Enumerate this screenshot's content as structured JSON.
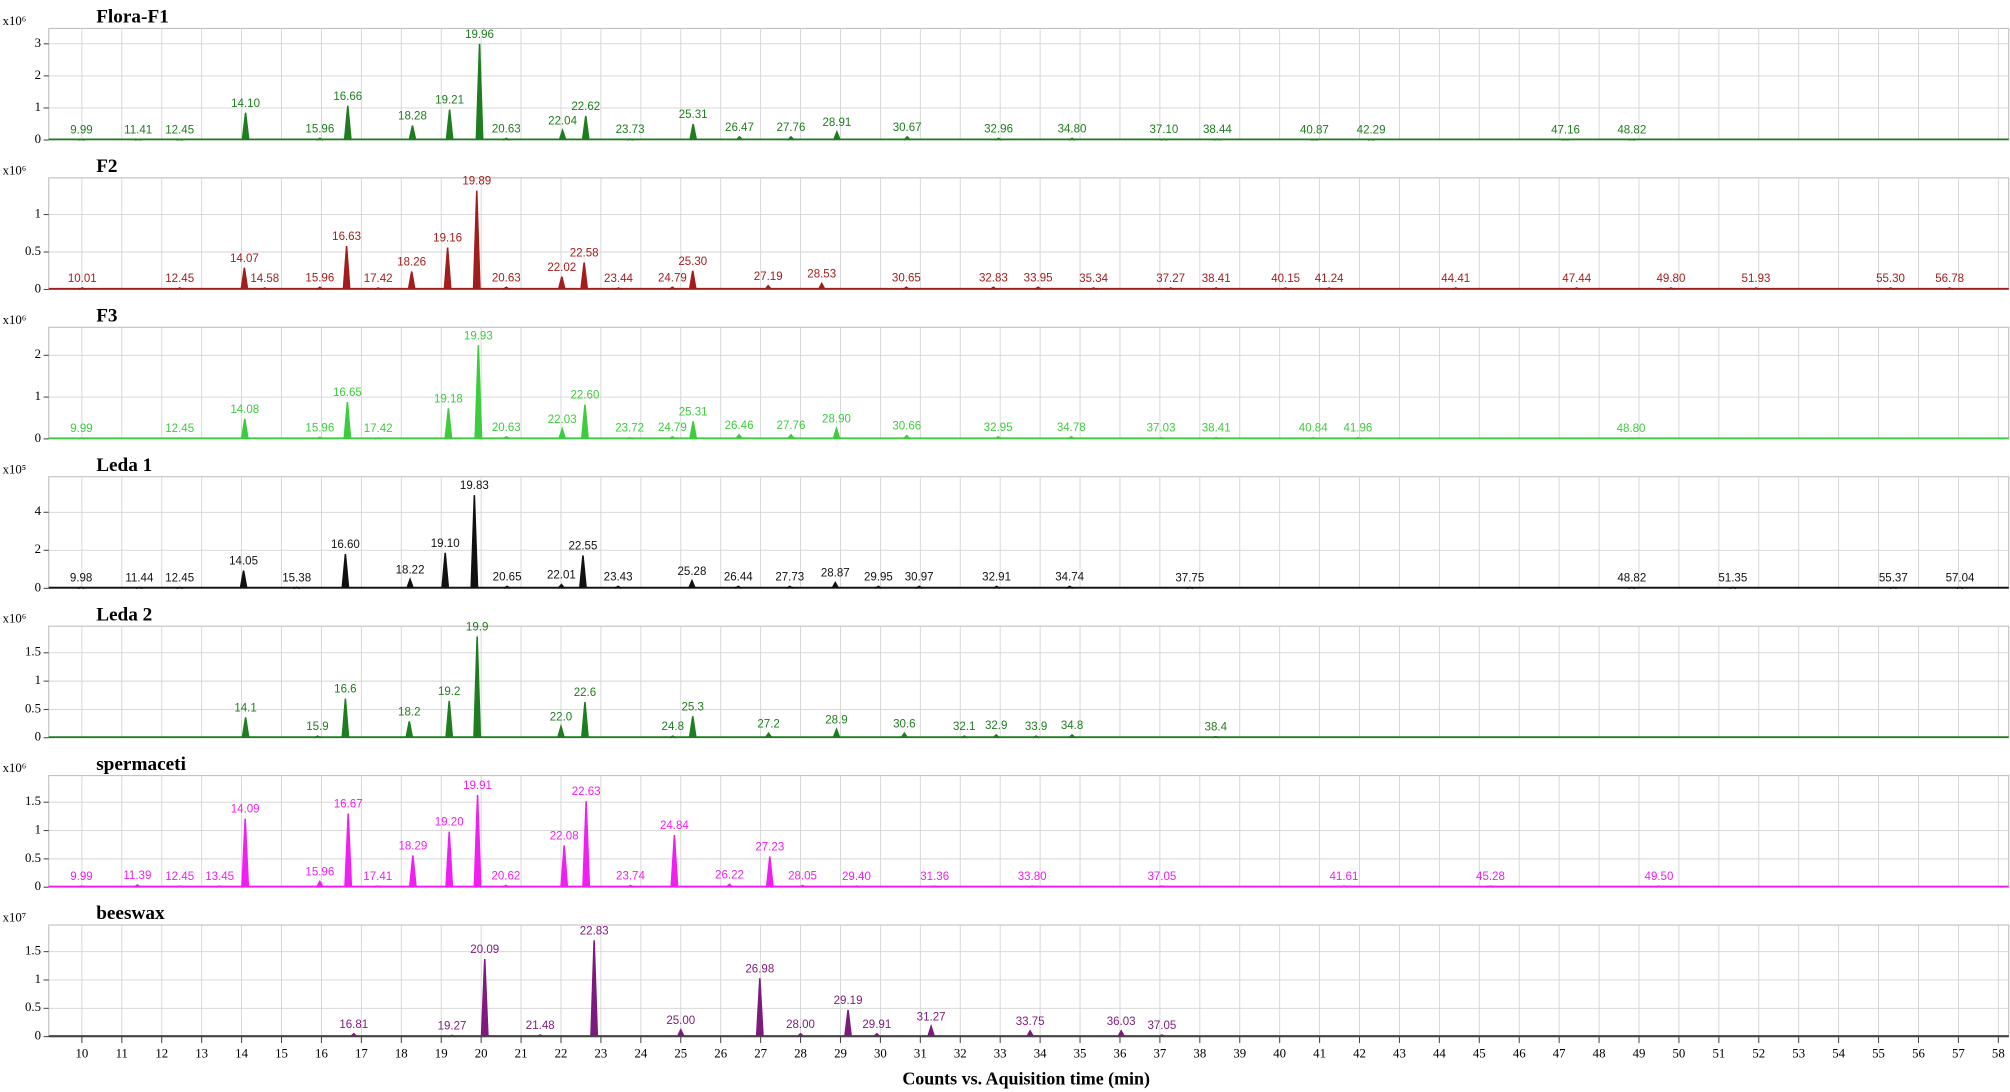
{
  "chart_data": {
    "type": "line",
    "xlabel": "Counts vs. Aquisition time (min)",
    "xlim": [
      9.17,
      58.26
    ],
    "xticks": [
      10,
      11,
      12,
      13,
      14,
      15,
      16,
      17,
      18,
      19,
      20,
      21,
      22,
      23,
      24,
      25,
      26,
      27,
      28,
      29,
      30,
      31,
      32,
      33,
      34,
      35,
      36,
      37,
      38,
      39,
      40,
      41,
      42,
      43,
      44,
      45,
      46,
      47,
      48,
      49,
      50,
      51,
      52,
      53,
      54,
      55,
      56,
      57,
      58
    ],
    "grid": true,
    "panels": [
      {
        "name": "Flora-F1",
        "scale": "x10⁶",
        "color": "#1e7d1e",
        "ylim": [
          0,
          3.48
        ],
        "yticks": [
          0,
          1,
          2,
          3
        ],
        "x": [
          9.99,
          11.41,
          12.45,
          14.1,
          15.96,
          16.66,
          18.28,
          19.21,
          19.96,
          20.63,
          22.04,
          22.62,
          23.73,
          25.31,
          26.47,
          27.76,
          28.91,
          30.67,
          32.96,
          34.8,
          37.1,
          38.44,
          40.87,
          42.29,
          47.16,
          48.82
        ],
        "labels": [
          "9.99",
          "11.41",
          "12.45",
          "14.10",
          "15.96",
          "16.66",
          "18.28",
          "19.21",
          "19.96",
          "20.63",
          "22.04",
          "22.62",
          "23.73",
          "25.31",
          "26.47",
          "27.76",
          "28.91",
          "30.67",
          "32.96",
          "34.80",
          "37.10",
          "38.44",
          "40.87",
          "42.29",
          "47.16",
          "48.82"
        ],
        "values": [
          0.02,
          0.02,
          0.02,
          0.85,
          0.05,
          1.07,
          0.45,
          0.95,
          3.0,
          0.05,
          0.3,
          0.75,
          0.03,
          0.5,
          0.1,
          0.1,
          0.25,
          0.1,
          0.05,
          0.05,
          0.03,
          0.03,
          0.02,
          0.02,
          0.02,
          0.02
        ]
      },
      {
        "name": "F2",
        "scale": "x10⁶",
        "color": "#a31d1d",
        "ylim": [
          0,
          1.49
        ],
        "yticks": [
          0,
          0.5,
          1
        ],
        "x": [
          10.01,
          12.45,
          14.07,
          14.58,
          15.96,
          16.63,
          17.42,
          18.26,
          19.16,
          19.89,
          20.63,
          22.02,
          22.58,
          23.44,
          24.79,
          25.3,
          27.19,
          28.53,
          30.65,
          32.83,
          33.95,
          35.34,
          37.27,
          38.41,
          40.15,
          41.24,
          44.41,
          47.44,
          49.8,
          51.93,
          55.3,
          56.78
        ],
        "labels": [
          "10.01",
          "12.45",
          "14.07",
          "14.58",
          "15.96",
          "16.63",
          "17.42",
          "18.26",
          "19.16",
          "19.89",
          "20.63",
          "22.02",
          "22.58",
          "23.44",
          "24.79",
          "25.30",
          "27.19",
          "28.53",
          "30.65",
          "32.83",
          "33.95",
          "35.34",
          "37.27",
          "38.41",
          "40.15",
          "41.24",
          "44.41",
          "47.44",
          "49.80",
          "51.93",
          "55.30",
          "56.78"
        ],
        "values": [
          0.02,
          0.02,
          0.29,
          0.02,
          0.03,
          0.58,
          0.02,
          0.24,
          0.56,
          1.32,
          0.03,
          0.17,
          0.36,
          0.02,
          0.03,
          0.25,
          0.05,
          0.08,
          0.03,
          0.03,
          0.03,
          0.02,
          0.02,
          0.02,
          0.02,
          0.02,
          0.02,
          0.02,
          0.02,
          0.02,
          0.02,
          0.02
        ]
      },
      {
        "name": "F3",
        "scale": "x10⁶",
        "color": "#3ccc3c",
        "ylim": [
          0,
          2.67
        ],
        "yticks": [
          0,
          1,
          2
        ],
        "x": [
          9.99,
          12.45,
          14.08,
          15.96,
          16.65,
          17.42,
          19.18,
          19.93,
          20.63,
          22.03,
          22.6,
          23.72,
          24.79,
          25.31,
          26.46,
          27.76,
          28.9,
          30.66,
          32.95,
          34.78,
          37.03,
          38.41,
          40.84,
          41.96,
          48.8
        ],
        "labels": [
          "9.99",
          "12.45",
          "14.08",
          "15.96",
          "16.65",
          "17.42",
          "19.18",
          "19.93",
          "20.63",
          "22.03",
          "22.60",
          "23.72",
          "24.79",
          "25.31",
          "26.46",
          "27.76",
          "28.90",
          "30.66",
          "32.95",
          "34.78",
          "37.03",
          "38.41",
          "40.84",
          "41.96",
          "48.80"
        ],
        "values": [
          0.02,
          0.02,
          0.48,
          0.04,
          0.88,
          0.02,
          0.73,
          2.24,
          0.05,
          0.24,
          0.82,
          0.03,
          0.05,
          0.42,
          0.1,
          0.1,
          0.25,
          0.08,
          0.05,
          0.05,
          0.03,
          0.03,
          0.03,
          0.03,
          0.02
        ]
      },
      {
        "name": "Leda 1",
        "scale": "x10⁵",
        "color": "#111111",
        "ylim": [
          0,
          5.87
        ],
        "yticks": [
          0,
          2,
          4
        ],
        "x": [
          9.98,
          11.44,
          12.45,
          14.05,
          15.38,
          16.6,
          18.22,
          19.1,
          19.83,
          20.65,
          22.01,
          22.55,
          23.43,
          25.28,
          26.44,
          27.73,
          28.87,
          29.95,
          30.97,
          32.91,
          34.74,
          37.75,
          48.82,
          51.35,
          55.37,
          57.04
        ],
        "labels": [
          "9.98",
          "11.44",
          "12.45",
          "14.05",
          "15.38",
          "16.60",
          "18.22",
          "19.10",
          "19.83",
          "20.65",
          "22.01",
          "22.55",
          "23.43",
          "25.28",
          "26.44",
          "27.73",
          "28.87",
          "29.95",
          "30.97",
          "32.91",
          "34.74",
          "37.75",
          "48.82",
          "51.35",
          "55.37",
          "57.04"
        ],
        "values": [
          0.05,
          0.05,
          0.05,
          0.93,
          0.05,
          1.8,
          0.47,
          1.87,
          4.9,
          0.1,
          0.2,
          1.73,
          0.1,
          0.4,
          0.1,
          0.1,
          0.3,
          0.1,
          0.1,
          0.1,
          0.1,
          0.05,
          0.05,
          0.05,
          0.05,
          0.05
        ]
      },
      {
        "name": "Leda 2",
        "scale": "x10⁶",
        "color": "#1e7d1e",
        "ylim": [
          0,
          1.97
        ],
        "yticks": [
          0,
          0.5,
          1,
          1.5
        ],
        "x": [
          14.1,
          15.9,
          16.6,
          18.2,
          19.2,
          19.9,
          22.0,
          22.6,
          24.8,
          25.3,
          27.2,
          28.9,
          30.6,
          32.1,
          32.9,
          33.9,
          34.8,
          38.4
        ],
        "labels": [
          "14.1",
          "15.9",
          "16.6",
          "18.2",
          "19.2",
          "19.9",
          "22.0",
          "22.6",
          "24.8",
          "25.3",
          "27.2",
          "28.9",
          "30.6",
          "32.1",
          "32.9",
          "33.9",
          "34.8",
          "38.4"
        ],
        "values": [
          0.36,
          0.03,
          0.69,
          0.29,
          0.65,
          1.79,
          0.2,
          0.63,
          0.03,
          0.38,
          0.08,
          0.15,
          0.08,
          0.03,
          0.05,
          0.03,
          0.05,
          0.02
        ]
      },
      {
        "name": "spermaceti",
        "scale": "x10⁶",
        "color": "#f01ef0",
        "ylim": [
          0,
          1.97
        ],
        "yticks": [
          0,
          0.5,
          1,
          1.5
        ],
        "x": [
          9.99,
          11.39,
          12.45,
          13.45,
          14.09,
          15.96,
          16.67,
          17.41,
          18.29,
          19.2,
          19.91,
          20.62,
          22.08,
          22.63,
          23.74,
          24.84,
          26.22,
          27.23,
          28.05,
          29.4,
          31.36,
          33.8,
          37.05,
          41.61,
          45.28,
          49.5
        ],
        "labels": [
          "9.99",
          "11.39",
          "12.45",
          "13.45",
          "14.09",
          "15.96",
          "16.67",
          "17.41",
          "18.29",
          "19.20",
          "19.91",
          "20.62",
          "22.08",
          "22.63",
          "23.74",
          "24.84",
          "26.22",
          "27.23",
          "28.05",
          "29.40",
          "31.36",
          "33.80",
          "37.05",
          "41.61",
          "45.28",
          "49.50"
        ],
        "values": [
          0.02,
          0.04,
          0.02,
          0.02,
          1.21,
          0.1,
          1.3,
          0.02,
          0.56,
          0.98,
          1.63,
          0.03,
          0.74,
          1.52,
          0.03,
          0.92,
          0.05,
          0.54,
          0.03,
          0.02,
          0.02,
          0.02,
          0.02,
          0.02,
          0.02,
          0.02
        ]
      },
      {
        "name": "beeswax",
        "scale": "x10⁷",
        "color": "#7d1a7d",
        "ylim": [
          0,
          1.97
        ],
        "yticks": [
          0,
          0.5,
          1,
          1.5
        ],
        "x": [
          16.81,
          19.27,
          20.09,
          21.48,
          22.83,
          25.0,
          26.98,
          28.0,
          29.19,
          29.91,
          31.27,
          33.75,
          36.03,
          37.05
        ],
        "labels": [
          "16.81",
          "19.27",
          "20.09",
          "21.48",
          "22.83",
          "25.00",
          "26.98",
          "28.00",
          "29.19",
          "29.91",
          "31.27",
          "33.75",
          "36.03",
          "37.05"
        ],
        "values": [
          0.05,
          0.02,
          1.37,
          0.03,
          1.7,
          0.12,
          1.03,
          0.05,
          0.47,
          0.05,
          0.18,
          0.1,
          0.1,
          0.03
        ]
      }
    ]
  }
}
